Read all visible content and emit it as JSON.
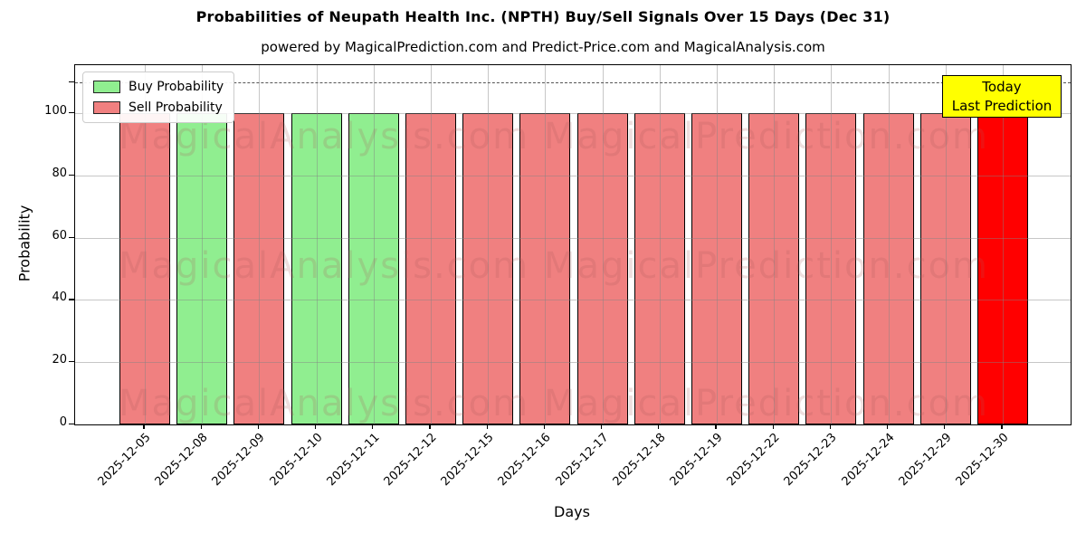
{
  "title": "Probabilities of Neupath Health Inc. (NPTH) Buy/Sell Signals Over 15 Days (Dec 31)",
  "subtitle": "powered by MagicalPrediction.com and Predict-Price.com and MagicalAnalysis.com",
  "legend": [
    {
      "label": "Buy Probability",
      "color": "#90EE90"
    },
    {
      "label": "Sell Probability",
      "color": "#F08080"
    }
  ],
  "annotation": {
    "line1": "Today",
    "line2": "Last Prediction",
    "bg": "#FFFF00"
  },
  "watermarks": {
    "left": "MagicalAnalysis.com",
    "right": "MagicalPrediction.com"
  },
  "chart_data": {
    "type": "bar",
    "title": "Probabilities of Neupath Health Inc. (NPTH) Buy/Sell Signals Over 15 Days (Dec 31)",
    "xlabel": "Days",
    "ylabel": "Probability",
    "ylim": [
      0,
      115
    ],
    "yticks": [
      0,
      20,
      40,
      60,
      80,
      100
    ],
    "dashed_line_y": 110,
    "grid": true,
    "legend_position": "upper left",
    "categories": [
      "2025-12-05",
      "2025-12-08",
      "2025-12-09",
      "2025-12-10",
      "2025-12-11",
      "2025-12-12",
      "2025-12-15",
      "2025-12-16",
      "2025-12-17",
      "2025-12-18",
      "2025-12-19",
      "2025-12-22",
      "2025-12-23",
      "2025-12-24",
      "2025-12-29",
      "2025-12-30"
    ],
    "bars": [
      {
        "date": "2025-12-05",
        "signal": "sell",
        "value": 100
      },
      {
        "date": "2025-12-08",
        "signal": "buy",
        "value": 100
      },
      {
        "date": "2025-12-09",
        "signal": "sell",
        "value": 100
      },
      {
        "date": "2025-12-10",
        "signal": "buy",
        "value": 100
      },
      {
        "date": "2025-12-11",
        "signal": "buy",
        "value": 100
      },
      {
        "date": "2025-12-12",
        "signal": "sell",
        "value": 100
      },
      {
        "date": "2025-12-15",
        "signal": "sell",
        "value": 100
      },
      {
        "date": "2025-12-16",
        "signal": "sell",
        "value": 100
      },
      {
        "date": "2025-12-17",
        "signal": "sell",
        "value": 100
      },
      {
        "date": "2025-12-18",
        "signal": "sell",
        "value": 100
      },
      {
        "date": "2025-12-19",
        "signal": "sell",
        "value": 100
      },
      {
        "date": "2025-12-22",
        "signal": "sell",
        "value": 100
      },
      {
        "date": "2025-12-23",
        "signal": "sell",
        "value": 100
      },
      {
        "date": "2025-12-24",
        "signal": "sell",
        "value": 100
      },
      {
        "date": "2025-12-29",
        "signal": "sell",
        "value": 100
      },
      {
        "date": "2025-12-30",
        "signal": "sell_today",
        "value": 100
      }
    ],
    "colors": {
      "buy": "#90EE90",
      "sell": "#F08080",
      "sell_today": "#FF0000"
    }
  }
}
